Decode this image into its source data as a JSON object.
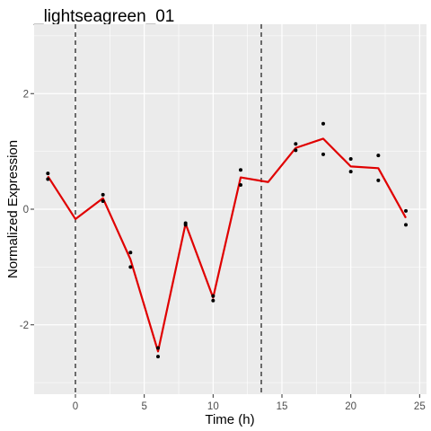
{
  "chart_data": {
    "type": "scatter",
    "title": "_lightseagreen_01",
    "xlabel": "Time (h)",
    "ylabel": "Normalized Expression",
    "xlim": [
      -3.0,
      25.5
    ],
    "ylim": [
      -3.2,
      3.2
    ],
    "x_ticks": [
      0,
      5,
      10,
      15,
      20,
      25
    ],
    "x_tick_labels": [
      "0",
      "5",
      "10",
      "15",
      "20",
      "25"
    ],
    "y_ticks": [
      -2,
      0,
      2
    ],
    "y_tick_labels": [
      "-2",
      "0",
      "2"
    ],
    "grid": true,
    "background_color": "#ebebeb",
    "vlines": [
      0,
      13.5
    ],
    "points": {
      "color": "#000000",
      "x": [
        -2,
        -2,
        2,
        2,
        4,
        4,
        6,
        6,
        8,
        8,
        10,
        10,
        12,
        12,
        16,
        16,
        18,
        18,
        20,
        20,
        22,
        22,
        24,
        24
      ],
      "y": [
        0.62,
        0.52,
        0.25,
        0.14,
        -0.75,
        -1.0,
        -2.4,
        -2.55,
        -0.24,
        -0.27,
        -1.5,
        -1.58,
        0.68,
        0.42,
        1.13,
        1.02,
        1.48,
        0.95,
        0.87,
        0.65,
        0.93,
        0.5,
        -0.03,
        -0.27
      ]
    },
    "mean_line": {
      "color": "#e00000",
      "x": [
        -2,
        0,
        2,
        4,
        6,
        8,
        10,
        12,
        14,
        16,
        18,
        20,
        22,
        24
      ],
      "y": [
        0.57,
        -0.17,
        0.19,
        -0.87,
        -2.46,
        -0.25,
        -1.53,
        0.55,
        0.47,
        1.06,
        1.22,
        0.74,
        0.71,
        -0.15
      ]
    }
  }
}
